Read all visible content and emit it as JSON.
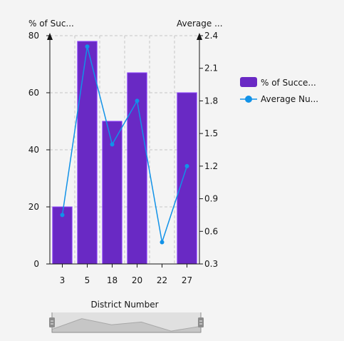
{
  "chart_data": {
    "type": "bar",
    "categories": [
      "3",
      "5",
      "18",
      "20",
      "22",
      "27"
    ],
    "xlabel": "District Number",
    "series": [
      {
        "name": "% of Succe...",
        "type": "bar",
        "axis": "left",
        "color": "#6929c4",
        "values": [
          20,
          78,
          50,
          67,
          null,
          60
        ]
      },
      {
        "name": "Average Nu...",
        "type": "line",
        "axis": "right",
        "color": "#1192e8",
        "values": [
          0.75,
          2.3,
          1.4,
          1.8,
          0.5,
          1.2
        ]
      }
    ],
    "left_axis": {
      "label": "% of Suc...",
      "ylim": [
        0,
        80
      ],
      "ticks": [
        "0",
        "20",
        "40",
        "60",
        "80"
      ]
    },
    "right_axis": {
      "label": "Average ...",
      "ylim": [
        0.3,
        2.4
      ],
      "ticks": [
        "0.3",
        "0.6",
        "0.9",
        "1.2",
        "1.5",
        "1.8",
        "2.1",
        "2.4"
      ]
    },
    "grid": true,
    "legend_position": "right",
    "zoom_bar": true
  }
}
